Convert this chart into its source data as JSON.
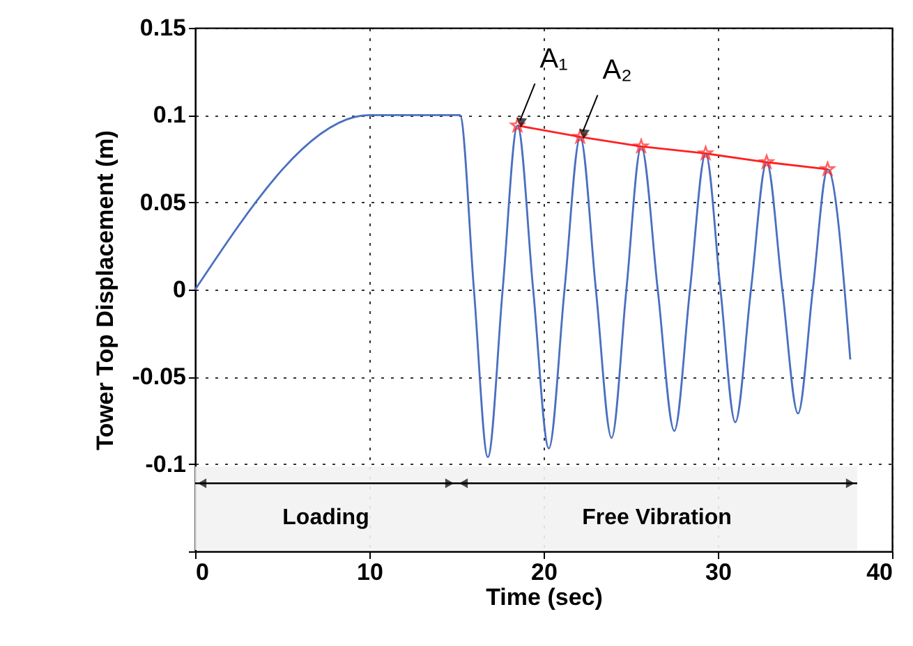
{
  "chart_data": {
    "type": "line",
    "xlabel": "Time (sec)",
    "ylabel": "Tower Top Displacement (m)",
    "xlim": [
      0,
      40
    ],
    "xticks": [
      0,
      10,
      20,
      30,
      40
    ],
    "ylim": [
      -0.15,
      0.15
    ],
    "yticks": [
      {
        "value": -0.15,
        "label": null
      },
      -0.1,
      -0.05,
      0,
      0.05,
      0.1,
      0.15
    ],
    "grid": true,
    "line_style": "solid",
    "series": [
      {
        "color": "#4a6fc0",
        "marker": "none",
        "x": [
          0,
          10,
          15.2,
          16.0,
          16.8,
          17.65,
          18.5,
          19.4,
          20.3,
          21.2,
          22.1,
          23.0,
          23.9,
          24.75,
          25.6,
          26.55,
          27.5,
          28.4,
          29.3,
          30.15,
          31.0,
          31.9,
          32.8,
          33.7,
          34.6,
          35.45,
          36.3,
          37.6
        ],
        "values": [
          0,
          0.1,
          0.1,
          0,
          -0.096,
          0,
          0.094,
          0,
          -0.091,
          0,
          0.0875,
          0,
          -0.085,
          0,
          0.082,
          0,
          -0.081,
          0,
          0.078,
          0,
          -0.076,
          0,
          0.073,
          0,
          -0.071,
          0,
          0.069,
          -0.04
        ]
      },
      {
        "color": "#ff2020",
        "marker": "star",
        "x": [
          18.5,
          22.1,
          25.6,
          29.3,
          32.8,
          36.3
        ],
        "values": [
          0.094,
          0.0875,
          0.082,
          0.078,
          0.073,
          0.069
        ]
      }
    ],
    "annotations": [
      {
        "text": "A₁",
        "x": 18.5,
        "y": 0.094
      },
      {
        "text": "A₂",
        "x": 22.1,
        "y": 0.0875
      }
    ],
    "bands": [
      {
        "axis": "x",
        "from": 0,
        "to": 15,
        "label": "Loading",
        "color": "#f2f2f2"
      },
      {
        "axis": "x",
        "from": 15,
        "to": 38,
        "label": "Free Vibration",
        "color": "#f2f2f2"
      }
    ]
  }
}
